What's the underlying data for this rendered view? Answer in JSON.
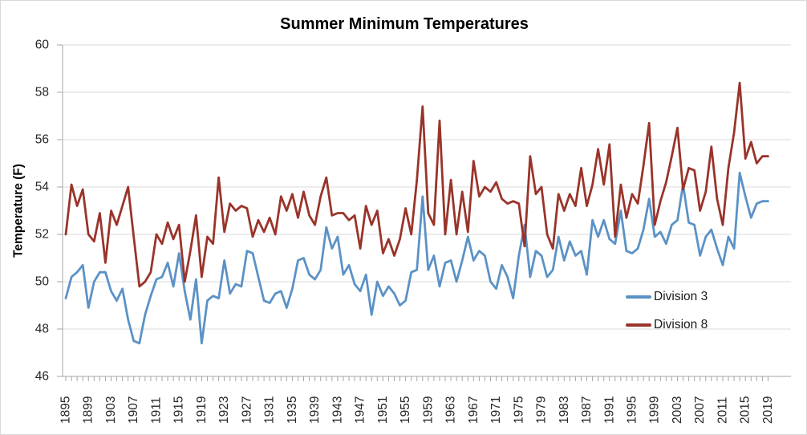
{
  "chart_data": {
    "type": "line",
    "title": "Summer Minimum Temperatures",
    "xlabel": "",
    "ylabel": "Temperature (F)",
    "ylim": [
      46,
      60
    ],
    "yticks": [
      46,
      48,
      50,
      52,
      54,
      56,
      58,
      60
    ],
    "x_start": 1895,
    "x_end": 2019,
    "xtick_labels": [
      1895,
      1899,
      1903,
      1907,
      1911,
      1915,
      1919,
      1923,
      1927,
      1931,
      1935,
      1939,
      1943,
      1947,
      1951,
      1955,
      1959,
      1963,
      1967,
      1971,
      1975,
      1979,
      1983,
      1987,
      1991,
      1995,
      1999,
      2003,
      2007,
      2011,
      2015,
      2019
    ],
    "grid": "horizontal",
    "legend_position": "inside-right",
    "colors": {
      "division3": "#5B92C6",
      "division8": "#99342A",
      "gridline": "#d9d9d9",
      "axis": "#a6a6a6",
      "tick_text": "#262626",
      "title_text": "#000000"
    },
    "series": [
      {
        "name": "Division 3",
        "color": "#5B92C6",
        "values": [
          49.3,
          50.2,
          50.4,
          50.7,
          48.9,
          50.0,
          50.4,
          50.4,
          49.6,
          49.2,
          49.7,
          48.4,
          47.5,
          47.4,
          48.6,
          49.4,
          50.1,
          50.2,
          50.8,
          49.8,
          51.2,
          49.6,
          48.4,
          50.1,
          47.4,
          49.2,
          49.4,
          49.3,
          50.9,
          49.5,
          49.9,
          49.8,
          51.3,
          51.2,
          50.2,
          49.2,
          49.1,
          49.5,
          49.6,
          48.9,
          49.7,
          50.9,
          51.0,
          50.3,
          50.1,
          50.5,
          52.3,
          51.4,
          51.9,
          50.3,
          50.7,
          49.9,
          49.6,
          50.3,
          48.6,
          50.0,
          49.4,
          49.8,
          49.5,
          49.0,
          49.2,
          50.4,
          50.5,
          53.6,
          50.5,
          51.1,
          49.8,
          50.8,
          50.9,
          50.0,
          50.9,
          51.9,
          50.9,
          51.3,
          51.1,
          50.0,
          49.7,
          50.7,
          50.2,
          49.3,
          51.1,
          52.4,
          50.2,
          51.3,
          51.1,
          50.2,
          50.5,
          51.9,
          50.9,
          51.7,
          51.1,
          51.3,
          50.3,
          52.6,
          51.9,
          52.6,
          51.8,
          51.6,
          53.0,
          51.3,
          51.2,
          51.4,
          52.2,
          53.5,
          51.9,
          52.1,
          51.6,
          52.4,
          52.6,
          54.1,
          52.5,
          52.4,
          51.1,
          51.9,
          52.2,
          51.4,
          50.7,
          51.9,
          51.4,
          54.6,
          53.6,
          52.7,
          53.3,
          53.4,
          53.4
        ]
      },
      {
        "name": "Division 8",
        "color": "#99342A",
        "values": [
          52.0,
          54.1,
          53.2,
          53.9,
          52.0,
          51.7,
          52.9,
          50.8,
          53.0,
          52.4,
          53.2,
          54.0,
          51.9,
          49.8,
          50.0,
          50.4,
          52.0,
          51.6,
          52.5,
          51.8,
          52.4,
          50.0,
          51.3,
          52.8,
          50.2,
          51.9,
          51.6,
          54.4,
          52.1,
          53.3,
          53.0,
          53.2,
          53.1,
          51.9,
          52.6,
          52.1,
          52.7,
          52.0,
          53.6,
          53.0,
          53.7,
          52.7,
          53.8,
          52.8,
          52.4,
          53.6,
          54.4,
          52.8,
          52.9,
          52.9,
          52.6,
          52.8,
          51.4,
          53.2,
          52.4,
          53.0,
          51.2,
          51.8,
          51.1,
          51.8,
          53.1,
          52.0,
          54.3,
          57.4,
          52.9,
          52.4,
          56.8,
          52.0,
          54.3,
          52.0,
          53.8,
          52.1,
          55.1,
          53.6,
          54.0,
          53.8,
          54.2,
          53.5,
          53.3,
          53.4,
          53.3,
          51.5,
          55.3,
          53.7,
          54.0,
          52.0,
          51.4,
          53.7,
          53.0,
          53.7,
          53.2,
          54.8,
          53.2,
          54.1,
          55.6,
          54.1,
          55.8,
          51.9,
          54.1,
          52.7,
          53.7,
          53.3,
          54.9,
          56.7,
          52.4,
          53.4,
          54.2,
          55.3,
          56.5,
          53.9,
          54.8,
          54.7,
          53.0,
          53.8,
          55.7,
          53.5,
          52.4,
          54.8,
          56.3,
          58.4,
          55.2,
          55.9,
          55.0,
          55.3,
          55.3
        ]
      }
    ]
  }
}
